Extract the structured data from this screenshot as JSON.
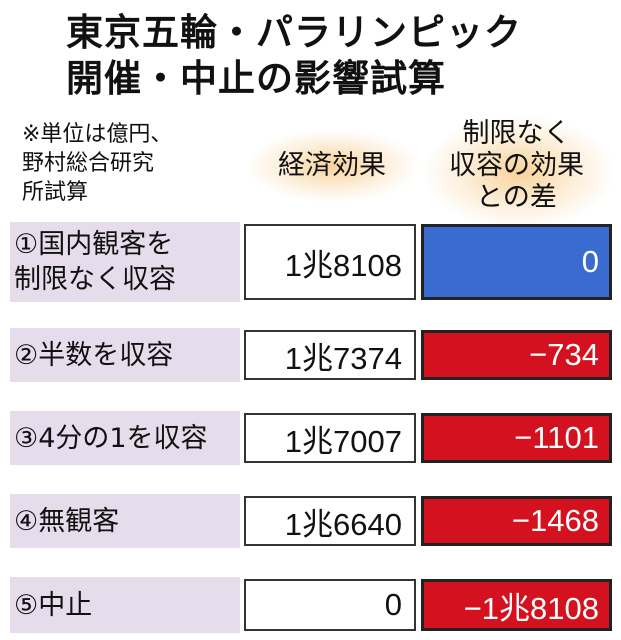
{
  "title": {
    "line1": "東京五輪・パラリンピック",
    "line2": "開催・中止の影響試算"
  },
  "note": {
    "lines": [
      "※単位は億円、",
      "野村総合研究",
      "所試算"
    ]
  },
  "headers": {
    "economic_effect": "経済効果",
    "difference_lines": [
      "制限なく",
      "収容の効果",
      "との差"
    ]
  },
  "chart_data": {
    "type": "table",
    "unit": "億円",
    "columns": [
      "経済効果",
      "制限なく収容の効果との差"
    ],
    "rows": [
      {
        "label_lines": [
          "①国内観客を",
          "制限なく収容"
        ],
        "effect": 18108,
        "effect_text": "1兆8108",
        "diff": 0,
        "diff_text": "0",
        "diff_color": "#3a6bd1"
      },
      {
        "label_lines": [
          "②半数を収容"
        ],
        "effect": 17374,
        "effect_text": "1兆7374",
        "diff": -734,
        "diff_text": "−734",
        "diff_color": "#d4121f"
      },
      {
        "label_lines": [
          "③4分の1を収容"
        ],
        "effect": 17007,
        "effect_text": "1兆7007",
        "diff": -1101,
        "diff_text": "−1101",
        "diff_color": "#d4121f"
      },
      {
        "label_lines": [
          "④無観客"
        ],
        "effect": 16640,
        "effect_text": "1兆6640",
        "diff": -1468,
        "diff_text": "−1468",
        "diff_color": "#d4121f"
      },
      {
        "label_lines": [
          "⑤中止"
        ],
        "effect": 0,
        "effect_text": "0",
        "diff": -18108,
        "diff_text": "−1兆8108",
        "diff_color": "#d4121f"
      }
    ]
  }
}
